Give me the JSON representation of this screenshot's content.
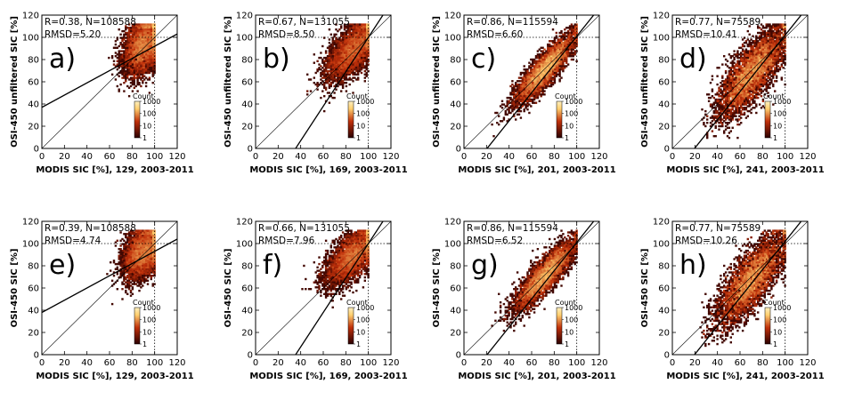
{
  "chart_data": [
    {
      "type": "scatter",
      "panel_label": "a)",
      "stats": [
        "R=0.38, N=108588",
        "RMSD=5.20"
      ],
      "xlabel": "MODIS SIC [%], 129, 2003-2011",
      "ylabel": "OSI-450 unfiltered SIC [%]",
      "xlim": [
        0,
        120
      ],
      "ylim": [
        0,
        120
      ],
      "x_ticks": [
        "0",
        "20",
        "40",
        "60",
        "80",
        "100",
        "120"
      ],
      "y_ticks": [
        "0",
        "20",
        "40",
        "60",
        "80",
        "100",
        "120"
      ],
      "colorbar": {
        "title": "Count",
        "ticks": [
          "1000",
          "100",
          "10",
          "1"
        ],
        "scale": "log"
      },
      "regression": {
        "slope": 0.55,
        "intercept": 37
      },
      "reference": "1:1 line",
      "density": {
        "center": [
          90,
          93
        ],
        "spread": [
          9,
          13
        ],
        "corr": 0.38,
        "tail_x_min": 20
      }
    },
    {
      "type": "scatter",
      "panel_label": "b)",
      "stats": [
        "R=0.67, N=131055",
        "RMSD=8.50"
      ],
      "xlabel": "MODIS SIC [%], 169, 2003-2011",
      "ylabel": "OSI-450 unfiltered SIC [%]",
      "xlim": [
        0,
        120
      ],
      "ylim": [
        0,
        120
      ],
      "x_ticks": [
        "0",
        "20",
        "40",
        "60",
        "80",
        "100",
        "120"
      ],
      "y_ticks": [
        "0",
        "20",
        "40",
        "60",
        "80",
        "100",
        "120"
      ],
      "colorbar": {
        "title": "Count",
        "ticks": [
          "1000",
          "100",
          "10",
          "1"
        ],
        "scale": "log"
      },
      "regression": {
        "slope": 1.55,
        "intercept": -55
      },
      "reference": "1:1 line",
      "density": {
        "center": [
          87,
          90
        ],
        "spread": [
          12,
          14
        ],
        "corr": 0.67,
        "tail_x_min": 25
      }
    },
    {
      "type": "scatter",
      "panel_label": "c)",
      "stats": [
        "R=0.86, N=115594",
        "RMSD=6.60"
      ],
      "xlabel": "MODIS SIC [%], 201, 2003-2011",
      "ylabel": "OSI-450 unfiltered SIC [%]",
      "xlim": [
        0,
        120
      ],
      "ylim": [
        0,
        120
      ],
      "x_ticks": [
        "0",
        "20",
        "40",
        "60",
        "80",
        "100",
        "120"
      ],
      "y_ticks": [
        "0",
        "20",
        "40",
        "60",
        "80",
        "100",
        "120"
      ],
      "colorbar": {
        "title": "Count",
        "ticks": [
          "1000",
          "100",
          "10",
          "1"
        ],
        "scale": "log"
      },
      "regression": {
        "slope": 1.27,
        "intercept": -26
      },
      "reference": "1:1 line",
      "density": {
        "center": [
          72,
          72
        ],
        "spread": [
          13,
          15
        ],
        "corr": 0.86,
        "tail_x_min": 25
      }
    },
    {
      "type": "scatter",
      "panel_label": "d)",
      "stats": [
        "R=0.77, N=75589",
        "RMSD=10.41"
      ],
      "xlabel": "MODIS SIC [%], 241, 2003-2011",
      "ylabel": "OSI-450 unfiltered SIC [%]",
      "xlim": [
        0,
        120
      ],
      "ylim": [
        0,
        120
      ],
      "x_ticks": [
        "0",
        "20",
        "40",
        "60",
        "80",
        "100",
        "120"
      ],
      "y_ticks": [
        "0",
        "20",
        "40",
        "60",
        "80",
        "100",
        "120"
      ],
      "colorbar": {
        "title": "Count",
        "ticks": [
          "1000",
          "100",
          "10",
          "1"
        ],
        "scale": "log"
      },
      "regression": {
        "slope": 1.27,
        "intercept": -25
      },
      "reference": "1:1 line",
      "density": {
        "center": [
          70,
          68
        ],
        "spread": [
          15,
          20
        ],
        "corr": 0.77,
        "tail_x_min": 25
      }
    },
    {
      "type": "scatter",
      "panel_label": "e)",
      "stats": [
        "R=0.39, N=108588",
        "RMSD=4.74"
      ],
      "xlabel": "MODIS SIC [%], 129, 2003-2011",
      "ylabel": "OSI-450 SIC [%]",
      "xlim": [
        0,
        120
      ],
      "ylim": [
        0,
        120
      ],
      "x_ticks": [
        "0",
        "20",
        "40",
        "60",
        "80",
        "100",
        "120"
      ],
      "y_ticks": [
        "0",
        "20",
        "40",
        "60",
        "80",
        "100",
        "120"
      ],
      "colorbar": {
        "title": "Count",
        "ticks": [
          "1000",
          "100",
          "10",
          "1"
        ],
        "scale": "log"
      },
      "regression": {
        "slope": 0.55,
        "intercept": 38
      },
      "reference": "1:1 line",
      "density": {
        "center": [
          90,
          93
        ],
        "spread": [
          9,
          12
        ],
        "corr": 0.39,
        "tail_x_min": 20
      }
    },
    {
      "type": "scatter",
      "panel_label": "f)",
      "stats": [
        "R=0.66, N=131055",
        "RMSD=7.96"
      ],
      "xlabel": "MODIS SIC [%], 169, 2003-2011",
      "ylabel": "OSI-450 SIC [%]",
      "xlim": [
        0,
        120
      ],
      "ylim": [
        0,
        120
      ],
      "x_ticks": [
        "0",
        "20",
        "40",
        "60",
        "80",
        "100",
        "120"
      ],
      "y_ticks": [
        "0",
        "20",
        "40",
        "60",
        "80",
        "100",
        "120"
      ],
      "colorbar": {
        "title": "Count",
        "ticks": [
          "1000",
          "100",
          "10",
          "1"
        ],
        "scale": "log"
      },
      "regression": {
        "slope": 1.55,
        "intercept": -55
      },
      "reference": "1:1 line",
      "density": {
        "center": [
          87,
          90
        ],
        "spread": [
          12,
          13
        ],
        "corr": 0.66,
        "tail_x_min": 25
      }
    },
    {
      "type": "scatter",
      "panel_label": "g)",
      "stats": [
        "R=0.86, N=115594",
        "RMSD=6.52"
      ],
      "xlabel": "MODIS SIC [%], 201, 2003-2011",
      "ylabel": "OSI-450 SIC [%]",
      "xlim": [
        0,
        120
      ],
      "ylim": [
        0,
        120
      ],
      "x_ticks": [
        "0",
        "20",
        "40",
        "60",
        "80",
        "100",
        "120"
      ],
      "y_ticks": [
        "0",
        "20",
        "40",
        "60",
        "80",
        "100",
        "120"
      ],
      "colorbar": {
        "title": "Count",
        "ticks": [
          "1000",
          "100",
          "10",
          "1"
        ],
        "scale": "log"
      },
      "regression": {
        "slope": 1.27,
        "intercept": -26
      },
      "reference": "1:1 line",
      "density": {
        "center": [
          72,
          72
        ],
        "spread": [
          13,
          15
        ],
        "corr": 0.86,
        "tail_x_min": 25
      }
    },
    {
      "type": "scatter",
      "panel_label": "h)",
      "stats": [
        "R=0.77, N=75589",
        "RMSD=10.26"
      ],
      "xlabel": "MODIS SIC [%], 241, 2003-2011",
      "ylabel": "OSI-450 SIC [%]",
      "xlim": [
        0,
        120
      ],
      "ylim": [
        0,
        120
      ],
      "x_ticks": [
        "0",
        "20",
        "40",
        "60",
        "80",
        "100",
        "120"
      ],
      "y_ticks": [
        "0",
        "20",
        "40",
        "60",
        "80",
        "100",
        "120"
      ],
      "colorbar": {
        "title": "Count",
        "ticks": [
          "1000",
          "100",
          "10",
          "1"
        ],
        "scale": "log"
      },
      "regression": {
        "slope": 1.27,
        "intercept": -25
      },
      "reference": "1:1 line",
      "density": {
        "center": [
          70,
          68
        ],
        "spread": [
          15,
          20
        ],
        "corr": 0.77,
        "tail_x_min": 25
      }
    }
  ],
  "colors": {
    "density_low": "#2b0000",
    "density_mid": "#c0300a",
    "density_high": "#ffd070",
    "colorbar_top": "#fff0c0",
    "axis": "#000000"
  }
}
